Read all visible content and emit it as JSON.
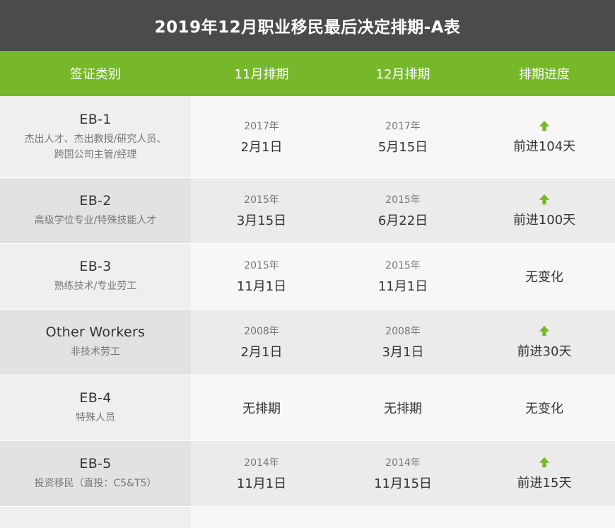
{
  "title": "2019年12月职业移民最后决定排期-A表",
  "headers": [
    "签证类别",
    "11月排期",
    "12月排期",
    "排期进度"
  ],
  "colors": {
    "title_bg": "#4b4b4b",
    "header_bg": "#76b82a",
    "arrow": "#76b82a"
  },
  "rows": [
    {
      "code": "EB-1",
      "desc_lines": [
        "杰出人才、杰出教授/研究人员、",
        "跨国公司主管/经理"
      ],
      "nov": {
        "year": "2017年",
        "date": "2月1日"
      },
      "dec": {
        "year": "2017年",
        "date": "5月15日"
      },
      "progress": {
        "arrow": true,
        "icon": "up-arrow-icon",
        "text": "前进104天"
      }
    },
    {
      "code": "EB-2",
      "desc_lines": [
        "高级学位专业/特殊技能人才"
      ],
      "nov": {
        "year": "2015年",
        "date": "3月15日"
      },
      "dec": {
        "year": "2015年",
        "date": "6月22日"
      },
      "progress": {
        "arrow": true,
        "icon": "up-arrow-icon",
        "text": "前进100天"
      }
    },
    {
      "code": "EB-3",
      "desc_lines": [
        "熟练技术/专业劳工"
      ],
      "nov": {
        "year": "2015年",
        "date": "11月1日"
      },
      "dec": {
        "year": "2015年",
        "date": "11月1日"
      },
      "progress": {
        "arrow": false,
        "text": "无变化"
      }
    },
    {
      "code": "Other Workers",
      "desc_lines": [
        "非技术劳工"
      ],
      "nov": {
        "year": "2008年",
        "date": "2月1日"
      },
      "dec": {
        "year": "2008年",
        "date": "3月1日"
      },
      "progress": {
        "arrow": true,
        "icon": "up-arrow-icon",
        "text": "前进30天"
      }
    },
    {
      "code": "EB-4",
      "desc_lines": [
        "特殊人员"
      ],
      "nov": {
        "plain": "无排期"
      },
      "dec": {
        "plain": "无排期"
      },
      "progress": {
        "arrow": false,
        "text": "无变化"
      }
    },
    {
      "code": "EB-5",
      "desc_lines": [
        "投资移民（直投：C5&T5）"
      ],
      "nov": {
        "year": "2014年",
        "date": "11月1日"
      },
      "dec": {
        "year": "2014年",
        "date": "11月15日"
      },
      "progress": {
        "arrow": true,
        "icon": "up-arrow-icon",
        "text": "前进15天"
      }
    }
  ]
}
